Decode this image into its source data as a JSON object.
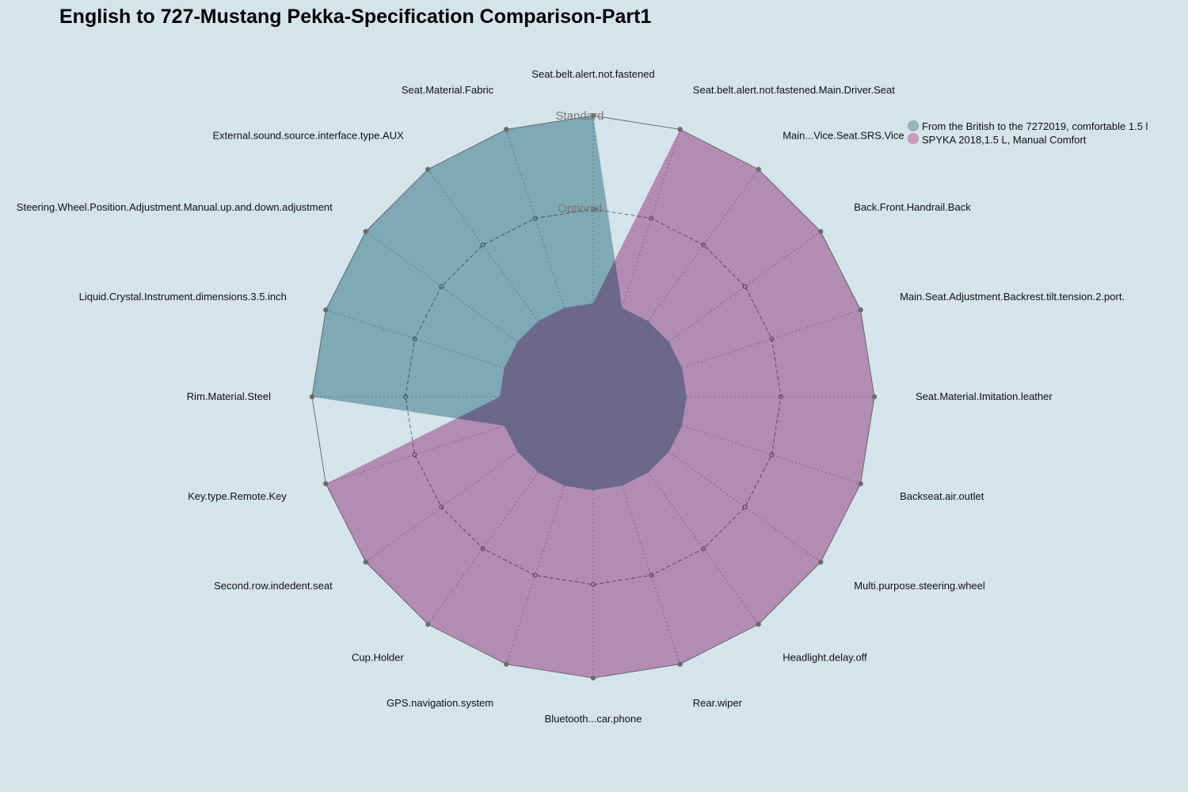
{
  "chart_data": {
    "type": "radar",
    "title": "English to 727-Mustang Pekka-Specification Comparison-Part1",
    "levels": [
      "Optional",
      "Standard"
    ],
    "axes": [
      "Seat.belt.alert.not.fastened",
      "Seat.belt.alert.not.fastened.Main.Driver.Seat",
      "Main...Vice.Seat.SRS.Vice",
      "Back.Front.Handrail.Back",
      "Main.Seat.Adjustment.Backrest.tilt.tension.2.port.",
      "Seat.Material.Imitation.leather",
      "Backseat.air.outlet",
      "Multi.purpose.steering.wheel",
      "Headlight.delay.off",
      "Rear.wiper",
      "Bluetooth...car.phone",
      "GPS.navigation.system",
      "Cup.Holder",
      "Second.row.indedent.seat",
      "Key.type.Remote.Key",
      "Rim.Material.Steel",
      "Liquid.Crystal.Instrument.dimensions.3.5.inch",
      "Steering.Wheel.Position.Adjustment.Manual.up.and.down.adjustment",
      "External.sound.source.interface.type.AUX",
      "Seat.Material.Fabric"
    ],
    "series": [
      {
        "name": "From the British to the 7272019, comfortable 1.5 l",
        "color": "#8fb9bf",
        "values": [
          1,
          0,
          0,
          0,
          0,
          0,
          0,
          0,
          0,
          0,
          0,
          0,
          0,
          0,
          0,
          1,
          1,
          1,
          1,
          1
        ]
      },
      {
        "name": "SPYKA 2018,1.5 L, Manual Comfort",
        "color": "#d295bd",
        "values": [
          0,
          1,
          1,
          1,
          1,
          1,
          1,
          1,
          1,
          1,
          1,
          1,
          1,
          1,
          1,
          0,
          0,
          0,
          0,
          0
        ]
      }
    ],
    "legend_position": "top-right"
  }
}
